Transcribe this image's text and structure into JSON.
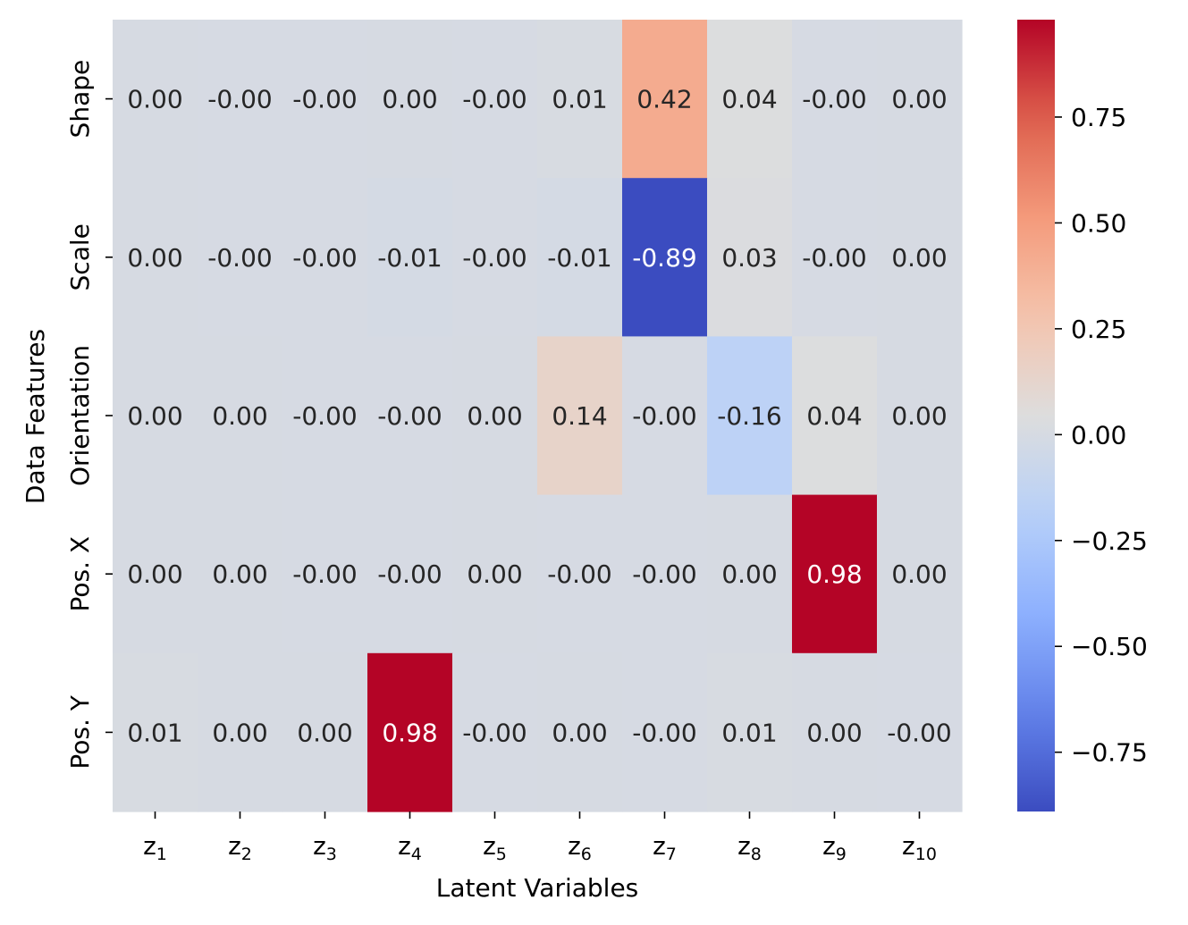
{
  "chart_data": {
    "type": "heatmap",
    "title": "",
    "xlabel": "Latent Variables",
    "ylabel": "Data Features",
    "x_categories": [
      {
        "base": "z",
        "sub": "1"
      },
      {
        "base": "z",
        "sub": "2"
      },
      {
        "base": "z",
        "sub": "3"
      },
      {
        "base": "z",
        "sub": "4"
      },
      {
        "base": "z",
        "sub": "5"
      },
      {
        "base": "z",
        "sub": "6"
      },
      {
        "base": "z",
        "sub": "7"
      },
      {
        "base": "z",
        "sub": "8"
      },
      {
        "base": "z",
        "sub": "9"
      },
      {
        "base": "z",
        "sub": "10"
      }
    ],
    "y_categories": [
      "Shape",
      "Scale",
      "Orientation",
      "Pos. X",
      "Pos. Y"
    ],
    "values": [
      [
        0.0,
        -0.001,
        -0.001,
        0.0,
        -0.001,
        0.01,
        0.42,
        0.04,
        -0.001,
        0.0
      ],
      [
        0.0,
        -0.001,
        -0.001,
        -0.01,
        -0.001,
        -0.01,
        -0.89,
        0.03,
        -0.001,
        0.0
      ],
      [
        0.0,
        0.0,
        -0.001,
        -0.001,
        0.0,
        0.14,
        -0.001,
        -0.16,
        0.04,
        0.0
      ],
      [
        0.0,
        0.0,
        -0.001,
        -0.001,
        0.0,
        -0.001,
        -0.001,
        0.0,
        0.98,
        0.0
      ],
      [
        0.01,
        0.0,
        0.0,
        0.98,
        -0.001,
        0.0,
        -0.001,
        0.01,
        0.0,
        -0.001
      ]
    ],
    "annotations": [
      [
        "0.00",
        "-0.00",
        "-0.00",
        "0.00",
        "-0.00",
        "0.01",
        "0.42",
        "0.04",
        "-0.00",
        "0.00"
      ],
      [
        "0.00",
        "-0.00",
        "-0.00",
        "-0.01",
        "-0.00",
        "-0.01",
        "-0.89",
        "0.03",
        "-0.00",
        "0.00"
      ],
      [
        "0.00",
        "0.00",
        "-0.00",
        "-0.00",
        "0.00",
        "0.14",
        "-0.00",
        "-0.16",
        "0.04",
        "0.00"
      ],
      [
        "0.00",
        "0.00",
        "-0.00",
        "-0.00",
        "0.00",
        "-0.00",
        "-0.00",
        "0.00",
        "0.98",
        "0.00"
      ],
      [
        "0.01",
        "0.00",
        "0.00",
        "0.98",
        "-0.00",
        "0.00",
        "-0.00",
        "0.01",
        "0.00",
        "-0.00"
      ]
    ],
    "colormap": "coolwarm",
    "color_range": [
      -0.89,
      0.98
    ],
    "colorbar_ticks": [
      0.75,
      0.5,
      0.25,
      0.0,
      -0.25,
      -0.5,
      -0.75
    ],
    "colorbar_tick_labels": [
      "0.75",
      "0.50",
      "0.25",
      "0.00",
      "−0.25",
      "−0.50",
      "−0.75"
    ],
    "legend": "colorbar-right"
  }
}
